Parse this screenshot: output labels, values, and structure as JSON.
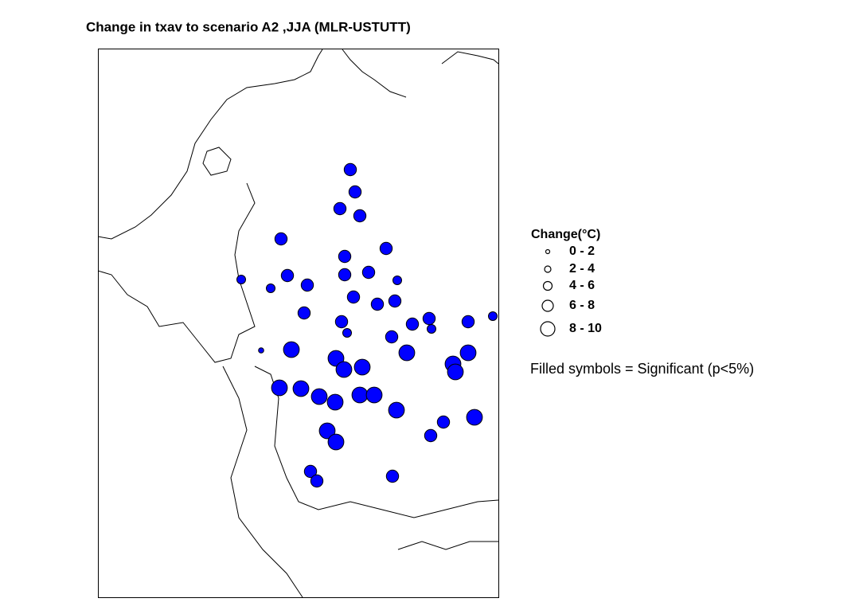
{
  "title": "Change in txav to scenario A2 ,JJA (MLR-USTUTT)",
  "legend": {
    "title": "Change(°C)",
    "classes": [
      "0 - 2",
      "2 - 4",
      "4 - 6",
      "6 - 8",
      "8 - 10"
    ]
  },
  "note": "Filled symbols = Significant (p<5%)",
  "stations": {
    "color": "#0000ff",
    "change": [
      7,
      7,
      7,
      7,
      7,
      7,
      7,
      5,
      5,
      7,
      7,
      7,
      7,
      5,
      7,
      7,
      7,
      7,
      7,
      5,
      7,
      7,
      5,
      7,
      5,
      7,
      3,
      9,
      9,
      9,
      9,
      9,
      9,
      9,
      9,
      9,
      9,
      9,
      9,
      9,
      9,
      9,
      7,
      9,
      7,
      9,
      9,
      7,
      7,
      7
    ]
  }
}
